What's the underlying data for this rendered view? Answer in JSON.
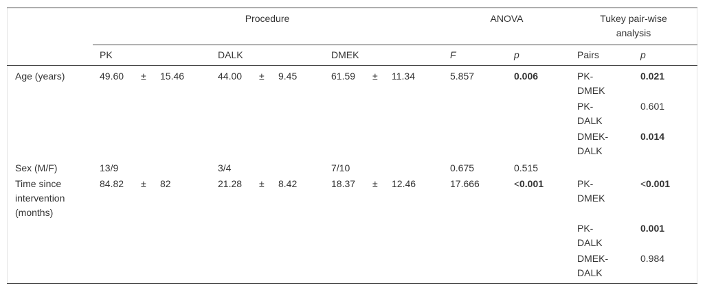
{
  "header": {
    "procedure": "Procedure",
    "anova": "ANOVA",
    "tukey": "Tukey pair-wise analysis"
  },
  "columns": [
    "PK",
    "DALK",
    "DMEK",
    "F",
    "p",
    "Pairs",
    "p"
  ],
  "rows": [
    {
      "label": "Age (years)",
      "pk": [
        "49.60",
        "±",
        "15.46"
      ],
      "dalk": [
        "44.00",
        "±",
        "9.45"
      ],
      "dmek": [
        "61.59",
        "±",
        "11.34"
      ],
      "F": "5.857",
      "p": {
        "text": "0.006",
        "bold": true
      },
      "tukey": [
        {
          "pair": "PK-DMEK",
          "p": {
            "text": "0.021",
            "bold": true
          }
        },
        {
          "pair": "PK-DALK",
          "p": {
            "text": "0.601",
            "bold": false
          }
        },
        {
          "pair": "DMEK-DALK",
          "p": {
            "text": "0.014",
            "bold": true
          }
        }
      ]
    },
    {
      "label": "Sex (M/F)",
      "pk": [
        "13/9"
      ],
      "dalk": [
        "3/4"
      ],
      "dmek": [
        "7/10"
      ],
      "F": "0.675",
      "p": {
        "text": "0.515",
        "bold": false
      },
      "tukey": []
    },
    {
      "label": "Time since intervention (months)",
      "pk": [
        "84.82",
        "±",
        "82"
      ],
      "dalk": [
        "21.28",
        "±",
        "8.42"
      ],
      "dmek": [
        "18.37",
        "±",
        "12.46"
      ],
      "F": "17.666",
      "p": {
        "prefix": "<",
        "text": "0.001",
        "bold": true
      },
      "tukey": [
        {
          "pair": "PK-DMEK",
          "p": {
            "prefix": "<",
            "text": "0.001",
            "bold": true
          }
        },
        {
          "pair": "PK-DALK",
          "p": {
            "text": "0.001",
            "bold": true
          }
        },
        {
          "pair": "DMEK-DALK",
          "p": {
            "text": "0.984",
            "bold": false
          }
        }
      ]
    }
  ]
}
